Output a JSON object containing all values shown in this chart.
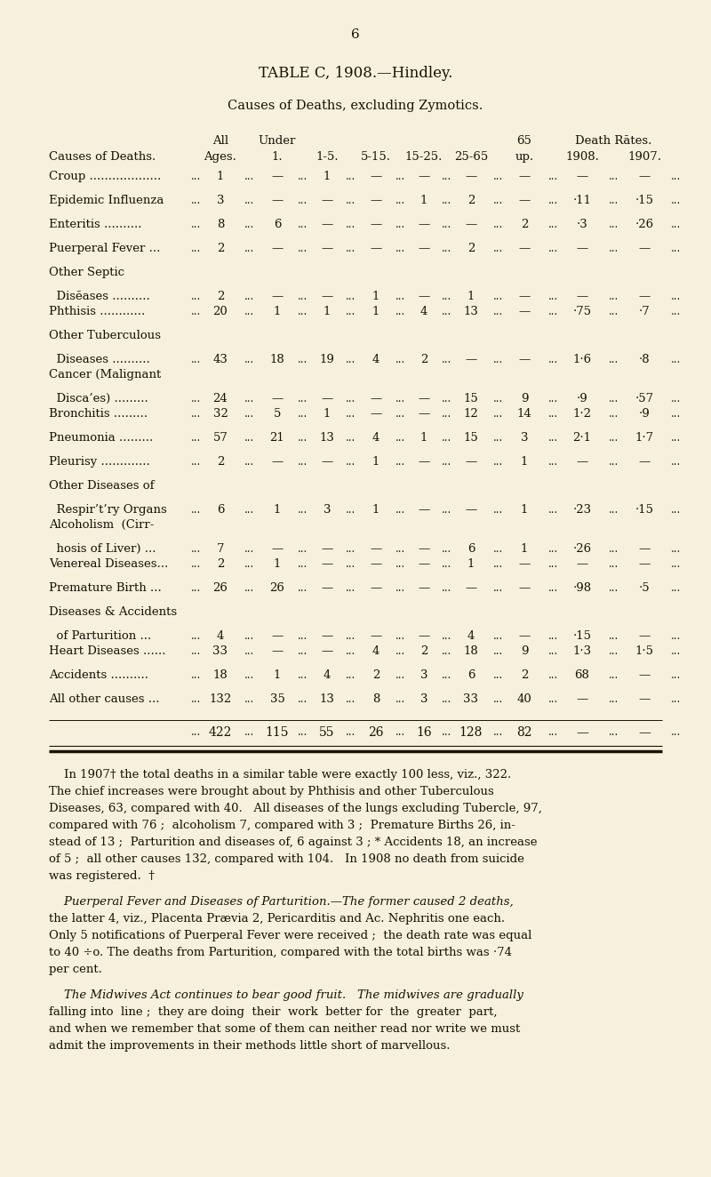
{
  "bg": "#f7f0dc",
  "tc": "#1c1005",
  "page_num": "6",
  "title": "TABLE C, 1908.—Hindley.",
  "subtitle": "Causes of Deaths, excluding Zymotics.",
  "rows": [
    {
      "c1": "Croup ...................",
      "c2": "",
      "all": "1",
      "u1": "—",
      "u5": "1",
      "u15": "—",
      "u25": "—",
      "u65": "—",
      "o65": "—",
      "r08": "—",
      "r07": "—"
    },
    {
      "c1": "Epidemic Influenza",
      "c2": "",
      "all": "3",
      "u1": "—",
      "u5": "—",
      "u15": "—",
      "u25": "1",
      "u65": "2",
      "o65": "—",
      "r08": "·11",
      "r07": "·15"
    },
    {
      "c1": "Enteritis ..........",
      "c2": "",
      "all": "8",
      "u1": "6",
      "u5": "—",
      "u15": "—",
      "u25": "—",
      "u65": "—",
      "o65": "2",
      "r08": "·3",
      "r07": "·26"
    },
    {
      "c1": "Puerperal Fever ...",
      "c2": "",
      "all": "2",
      "u1": "—",
      "u5": "—",
      "u15": "—",
      "u25": "—",
      "u65": "2",
      "o65": "—",
      "r08": "—",
      "r07": "—"
    },
    {
      "c1": "Other Septic",
      "c2": "  Disēases ..........",
      "all": "2",
      "u1": "—",
      "u5": "—",
      "u15": "1",
      "u25": "—",
      "u65": "1",
      "o65": "—",
      "r08": "—",
      "r07": "—"
    },
    {
      "c1": "Phthisis ............",
      "c2": "",
      "all": "20",
      "u1": "1",
      "u5": "1",
      "u15": "1",
      "u25": "4",
      "u65": "13",
      "o65": "—",
      "r08": "·75",
      "r07": "·7"
    },
    {
      "c1": "Other Tuberculous",
      "c2": "  Diseases ..........",
      "all": "43",
      "u1": "18",
      "u5": "19",
      "u15": "4",
      "u25": "2",
      "u65": "—",
      "o65": "—",
      "r08": "1·6",
      "r07": "·8"
    },
    {
      "c1": "Cancer (Malignant",
      "c2": "  Disca’es) .........",
      "all": "24",
      "u1": "—",
      "u5": "—",
      "u15": "—",
      "u25": "—",
      "u65": "15",
      "o65": "9",
      "r08": "·9",
      "r07": "·57"
    },
    {
      "c1": "Bronchitis .........",
      "c2": "",
      "all": "32",
      "u1": "5",
      "u5": "1",
      "u15": "—",
      "u25": "—",
      "u65": "12",
      "o65": "14",
      "r08": "1·2",
      "r07": "·9"
    },
    {
      "c1": "Pneumonia .........",
      "c2": "",
      "all": "57",
      "u1": "21",
      "u5": "13",
      "u15": "4",
      "u25": "1",
      "u65": "15",
      "o65": "3",
      "r08": "2·1",
      "r07": "1·7"
    },
    {
      "c1": "Pleurisy .............",
      "c2": "",
      "all": "2",
      "u1": "—",
      "u5": "—",
      "u15": "1",
      "u25": "—",
      "u65": "—",
      "o65": "1",
      "r08": "—",
      "r07": "—"
    },
    {
      "c1": "Other Diseases of",
      "c2": "  Respir’t’ry Organs",
      "all": "6",
      "u1": "1",
      "u5": "3",
      "u15": "1",
      "u25": "—",
      "u65": "—",
      "o65": "1",
      "r08": "·23",
      "r07": "·15"
    },
    {
      "c1": "Alcoholism  (Cirr-",
      "c2": "  hosis of Liver) ...",
      "all": "7",
      "u1": "—",
      "u5": "—",
      "u15": "—",
      "u25": "—",
      "u65": "6",
      "o65": "1",
      "r08": "·26",
      "r07": "—"
    },
    {
      "c1": "Venereal Diseases...",
      "c2": "",
      "all": "2",
      "u1": "1",
      "u5": "—",
      "u15": "—",
      "u25": "—",
      "u65": "1",
      "o65": "—",
      "r08": "—",
      "r07": "—"
    },
    {
      "c1": "Premature Birth ...",
      "c2": "",
      "all": "26",
      "u1": "26",
      "u5": "—",
      "u15": "—",
      "u25": "—",
      "u65": "—",
      "o65": "—",
      "r08": "·98",
      "r07": "·5"
    },
    {
      "c1": "Diseases & Accidents",
      "c2": "  of Parturition ...",
      "all": "4",
      "u1": "—",
      "u5": "—",
      "u15": "—",
      "u25": "—",
      "u65": "4",
      "o65": "—",
      "r08": "·15",
      "r07": "—"
    },
    {
      "c1": "Heart Diseases ......",
      "c2": "",
      "all": "33",
      "u1": "—",
      "u5": "—",
      "u15": "4",
      "u25": "2",
      "u65": "18",
      "o65": "9",
      "r08": "1·3",
      "r07": "1·5"
    },
    {
      "c1": "Accidents ..........",
      "c2": "",
      "all": "18",
      "u1": "1",
      "u5": "4",
      "u15": "2",
      "u25": "3",
      "u65": "6",
      "o65": "2",
      "r08": "68",
      "r07": "—"
    },
    {
      "c1": "All other causes ...",
      "c2": "",
      "all": "132",
      "u1": "35",
      "u5": "13",
      "u15": "8",
      "u25": "3",
      "u65": "33",
      "o65": "40",
      "r08": "—",
      "r07": "—"
    }
  ],
  "totals": [
    "422",
    "115",
    "55",
    "26",
    "16",
    "128",
    "82",
    "—",
    "—"
  ],
  "footer1": [
    "    In 1907† the total deaths in a similar table were exactly 100 less, viz., 322.",
    "The chief increases were brought about by Phthisis and other Tuberculous",
    "Diseases, 63, compared with 40.   All diseases of the lungs excluding Tubercle, 97,",
    "compared with 76 ;  alcoholism 7, compared with 3 ;  Premature Births 26, in-",
    "stead of 13 ;  Parturition and diseases of, 6 against 3 ; * Accidents 18, an increase",
    "of 5 ;  all other causes 132, compared with 104.   In 1908 no death from suicide",
    "was registered.  †"
  ],
  "footer2": [
    "    Puerperal Fever and Diseases of Parturition.—The former caused 2 deaths,",
    "the latter 4, viz., Placenta Prævia 2, Pericarditis and Ac. Nephritis one each.",
    "Only 5 notifications of Puerperal Fever were received ;  the death rate was equal",
    "to 40 ÷o. The deaths from Parturition, compared with the total births was ·74",
    "per cent."
  ],
  "footer3": [
    "    The Midwives Act continues to bear good fruit.   The midwives are gradually",
    "falling into  line ;  they are doing  their  work  better for  the  greater  part,",
    "and when we remember that some of them can neither read nor write we must",
    "admit the improvements in their methods little short of marvellous."
  ]
}
